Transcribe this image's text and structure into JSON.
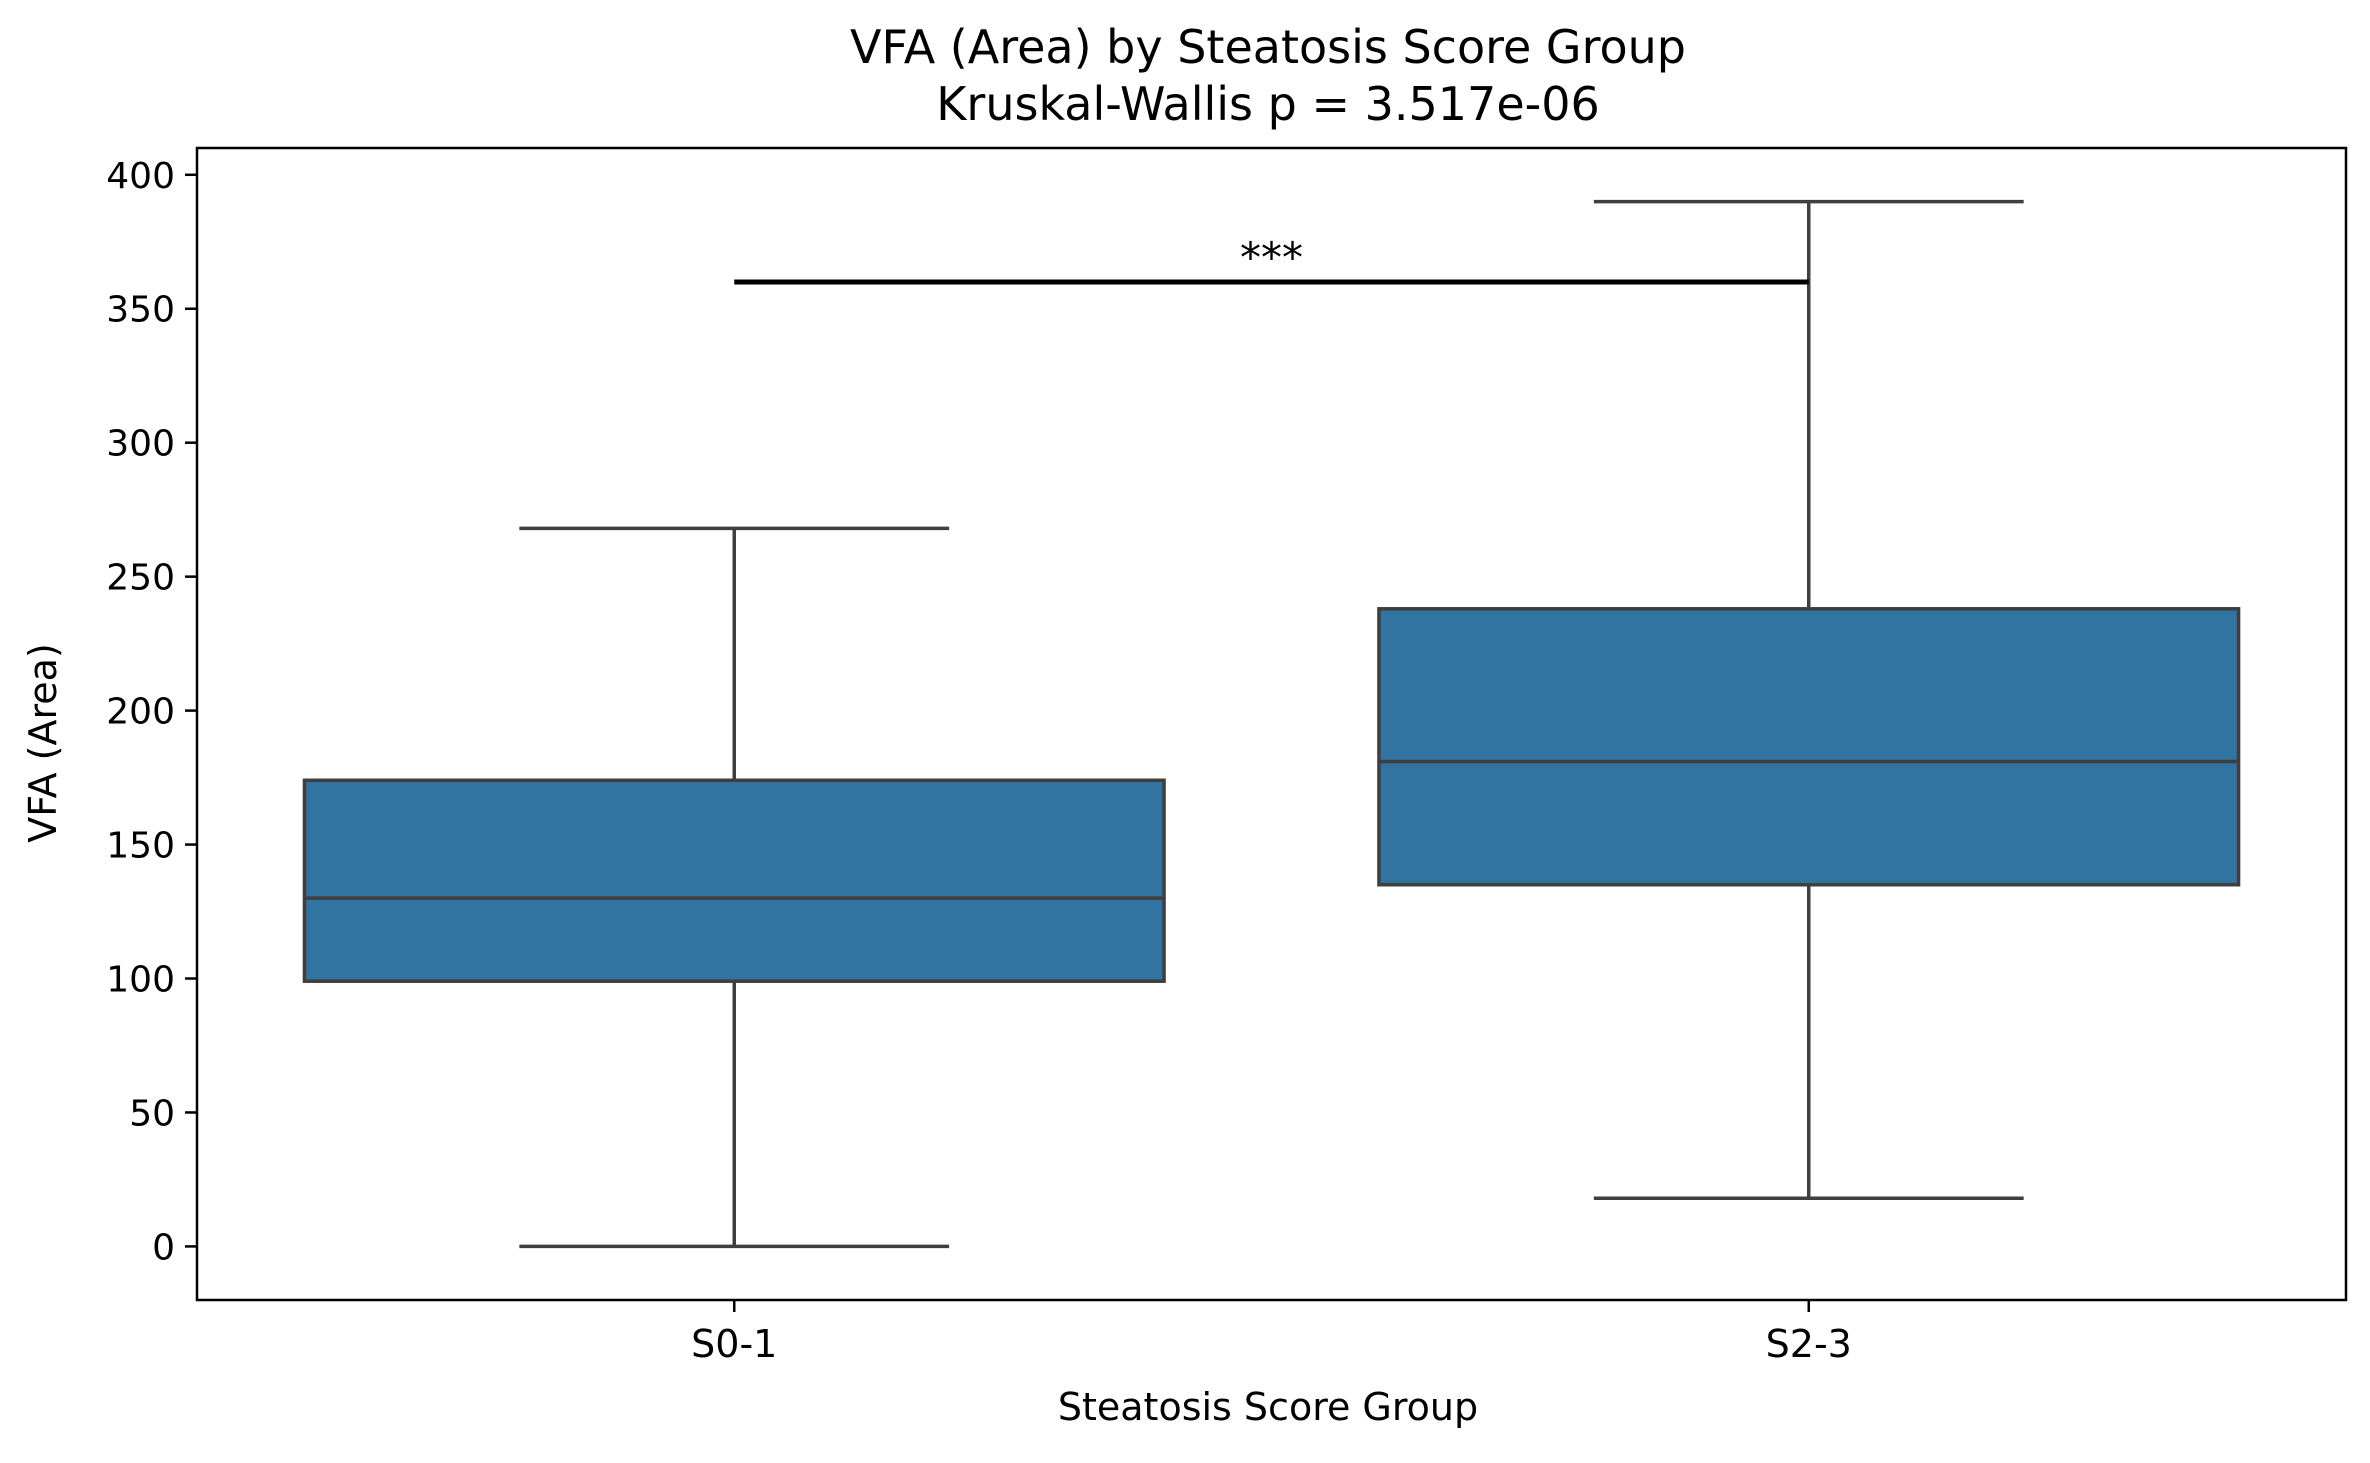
{
  "chart_data": {
    "type": "box",
    "title": "VFA (Area) by Steatosis Score Group",
    "subtitle": "Kruskal-Wallis p = 3.517e-06",
    "xlabel": "Steatosis Score Group",
    "ylabel": "VFA (Area)",
    "ylim": [
      -20,
      410
    ],
    "yticks": [
      0,
      50,
      100,
      150,
      200,
      250,
      300,
      350,
      400
    ],
    "grid": false,
    "legend": "none",
    "box_color": "#3274a1",
    "edge_color": "#3f3f3f",
    "categories": [
      "S0-1",
      "S2-3"
    ],
    "boxes": [
      {
        "category": "S0-1",
        "whisker_low": 0,
        "q1": 99,
        "median": 130,
        "q3": 174,
        "whisker_high": 268
      },
      {
        "category": "S2-3",
        "whisker_low": 18,
        "q1": 135,
        "median": 181,
        "q3": 238,
        "whisker_high": 390
      }
    ],
    "annotation": {
      "text": "***",
      "from": "S0-1",
      "to": "S2-3",
      "y": 360
    }
  }
}
